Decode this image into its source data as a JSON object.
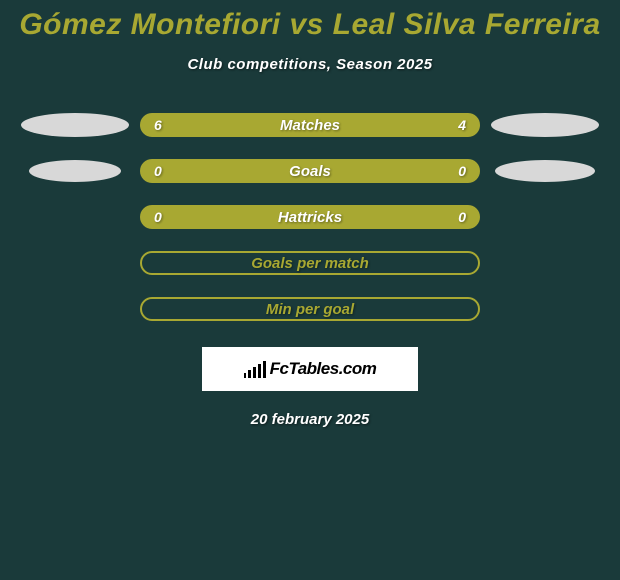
{
  "title": "Gómez Montefiori vs Leal Silva Ferreira",
  "subtitle": "Club competitions, Season 2025",
  "colors": {
    "background": "#1a3a3a",
    "accent": "#a8a832",
    "ellipse": "#d8d8d8",
    "text": "#ffffff",
    "logo_bg": "#ffffff",
    "logo_fg": "#000000"
  },
  "rows": [
    {
      "label": "Matches",
      "left": "6",
      "right": "4",
      "filled": true,
      "show_ellipses": true
    },
    {
      "label": "Goals",
      "left": "0",
      "right": "0",
      "filled": true,
      "show_ellipses": true
    },
    {
      "label": "Hattricks",
      "left": "0",
      "right": "0",
      "filled": true,
      "show_ellipses": false
    },
    {
      "label": "Goals per match",
      "left": "",
      "right": "",
      "filled": false,
      "show_ellipses": false
    },
    {
      "label": "Min per goal",
      "left": "",
      "right": "",
      "filled": false,
      "show_ellipses": false
    }
  ],
  "logo_text": "FcTables.com",
  "date": "20 february 2025"
}
